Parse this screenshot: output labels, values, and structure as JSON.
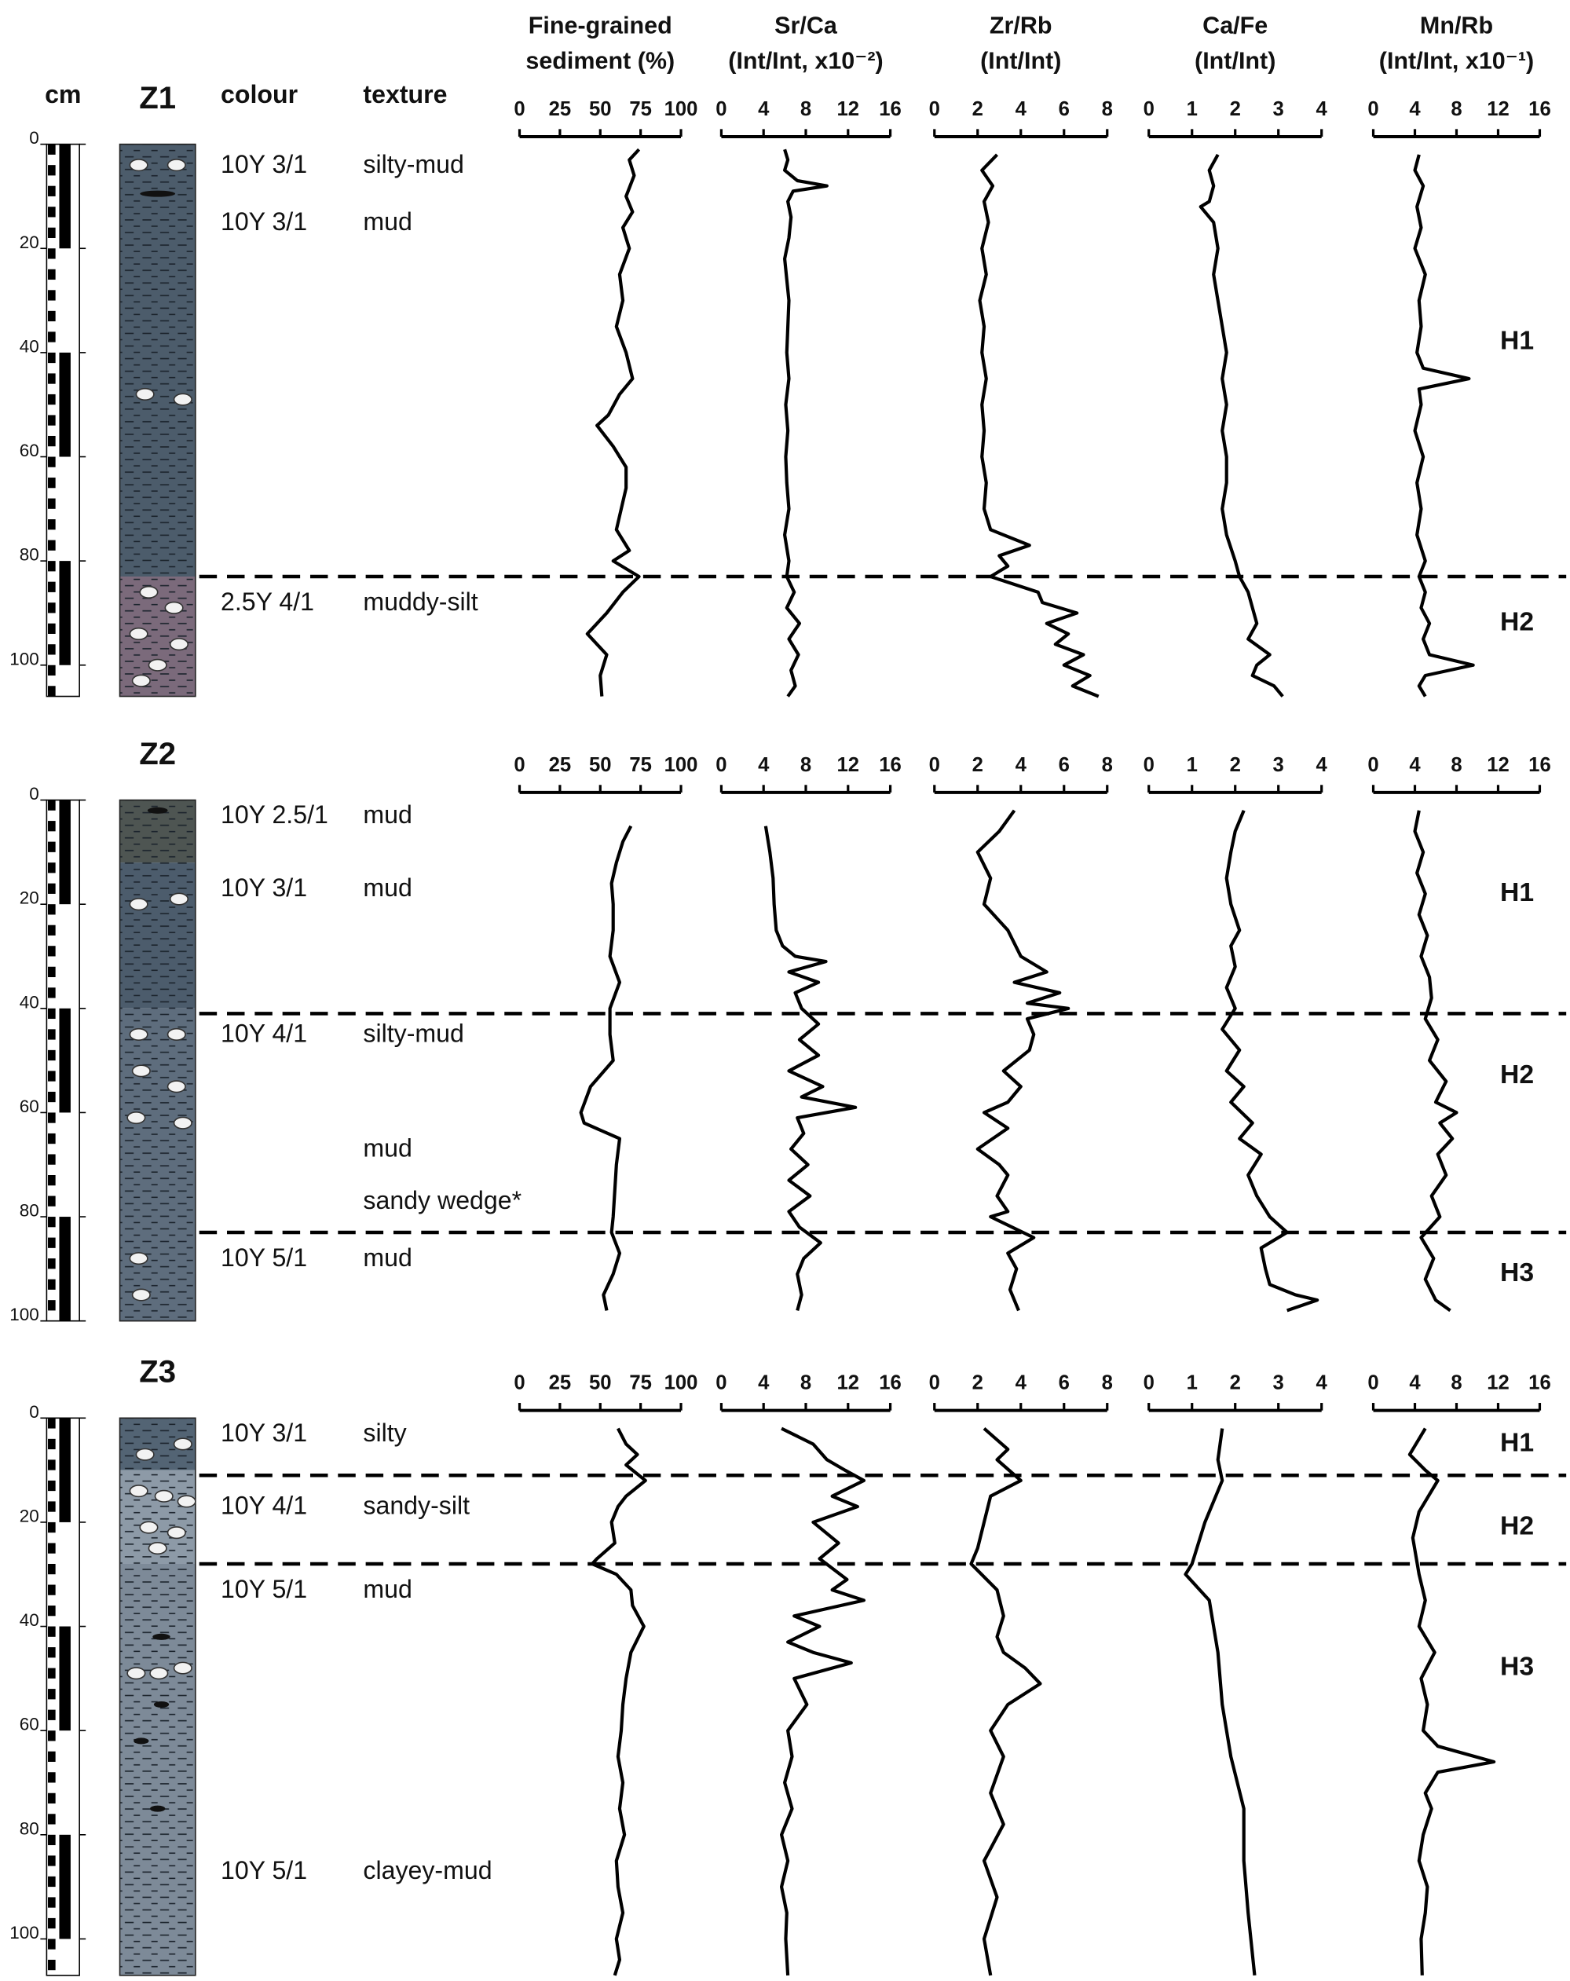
{
  "headers": {
    "depth_unit": "cm",
    "colour": "colour",
    "texture": "texture"
  },
  "cores": [
    {
      "name": "Z1",
      "ylim": [
        0,
        106
      ],
      "yticks": [
        0,
        20,
        40,
        60,
        80,
        100
      ],
      "units": [
        {
          "colour": "10Y 3/1",
          "texture": "silty-mud"
        },
        {
          "colour": "10Y 3/1",
          "texture": "mud"
        },
        {
          "colour": "2.5Y 4/1",
          "texture": "muddy-silt"
        }
      ],
      "boundaries": [
        83
      ],
      "zones": [
        "H1",
        "H2"
      ]
    },
    {
      "name": "Z2",
      "ylim": [
        0,
        100
      ],
      "yticks": [
        0,
        20,
        40,
        60,
        80,
        100
      ],
      "units": [
        {
          "colour": "10Y 2.5/1",
          "texture": "mud"
        },
        {
          "colour": "10Y 3/1",
          "texture": "mud"
        },
        {
          "colour": "10Y 4/1",
          "texture": "silty-mud"
        },
        {
          "texture": "mud"
        },
        {
          "texture": "sandy wedge*"
        },
        {
          "colour": "10Y 5/1",
          "texture": "mud"
        }
      ],
      "boundaries": [
        41,
        83
      ],
      "zones": [
        "H1",
        "H2",
        "H3"
      ]
    },
    {
      "name": "Z3",
      "ylim": [
        0,
        107
      ],
      "yticks": [
        0,
        20,
        40,
        60,
        80,
        100
      ],
      "units": [
        {
          "colour": "10Y 3/1",
          "texture": "silty"
        },
        {
          "colour": "10Y 4/1",
          "texture": "sandy-silt"
        },
        {
          "colour": "10Y 5/1",
          "texture": "mud"
        },
        {
          "colour": "10Y 5/1",
          "texture": "clayey-mud"
        }
      ],
      "boundaries": [
        11,
        28
      ],
      "zones": [
        "H1",
        "H2",
        "H3"
      ]
    }
  ],
  "chart_data": [
    {
      "type": "line",
      "title": [
        "Fine-grained",
        "sediment (%)"
      ],
      "xlim": [
        0,
        100
      ],
      "xticks": [
        0,
        25,
        50,
        75,
        100
      ],
      "series": [
        {
          "depth": [
            1,
            3,
            6,
            10,
            13,
            16,
            20,
            25,
            30,
            35,
            40,
            45,
            48,
            52,
            54,
            58,
            62,
            66,
            70,
            74,
            78,
            80,
            83,
            86,
            90,
            94,
            98,
            102,
            106
          ],
          "values": [
            74,
            68,
            71,
            66,
            70,
            64,
            68,
            62,
            64,
            60,
            66,
            70,
            62,
            55,
            48,
            58,
            66,
            66,
            63,
            60,
            68,
            58,
            74,
            64,
            54,
            42,
            54,
            50,
            51
          ]
        },
        {
          "depth": [
            5,
            8,
            12,
            16,
            20,
            25,
            30,
            35,
            40,
            45,
            50,
            55,
            60,
            62,
            65,
            70,
            75,
            80,
            83,
            87,
            91,
            95,
            98
          ],
          "values": [
            69,
            64,
            60,
            57,
            58,
            58,
            56,
            62,
            56,
            56,
            58,
            44,
            38,
            40,
            62,
            60,
            59,
            58,
            57,
            62,
            58,
            52,
            54
          ]
        },
        {
          "depth": [
            2,
            5,
            7,
            9,
            12,
            15,
            17,
            20,
            24,
            27,
            28,
            30,
            33,
            36,
            40,
            45,
            50,
            55,
            60,
            65,
            70,
            75,
            80,
            85,
            90,
            95,
            100,
            104,
            107
          ],
          "values": [
            61,
            66,
            73,
            66,
            78,
            66,
            61,
            57,
            59,
            48,
            45,
            60,
            69,
            70,
            77,
            69,
            66,
            64,
            63,
            61,
            64,
            62,
            65,
            60,
            61,
            64,
            60,
            62,
            59
          ]
        }
      ]
    },
    {
      "type": "line",
      "title": [
        "Sr/Ca",
        "(Int/Int, x10⁻²)"
      ],
      "xlim": [
        0,
        16
      ],
      "xticks": [
        0,
        4,
        8,
        12,
        16
      ],
      "series": [
        {
          "depth": [
            1,
            3,
            5,
            7,
            8,
            9,
            11,
            14,
            18,
            22,
            26,
            30,
            35,
            40,
            45,
            50,
            55,
            60,
            65,
            70,
            75,
            80,
            83,
            86,
            89,
            92,
            95,
            98,
            101,
            104,
            106
          ],
          "values": [
            6,
            6.3,
            6,
            7.2,
            10,
            6.8,
            6.3,
            6.6,
            6.4,
            6,
            6.2,
            6.4,
            6.3,
            6.2,
            6.4,
            6.1,
            6.3,
            6.1,
            6.2,
            6.4,
            6,
            6.4,
            6.2,
            6.9,
            6.2,
            7.4,
            6.4,
            7.3,
            6.6,
            7,
            6.3
          ]
        },
        {
          "depth": [
            5,
            10,
            15,
            20,
            25,
            28,
            30,
            31,
            33,
            35,
            37,
            40,
            43,
            46,
            49,
            52,
            55,
            57,
            59,
            61,
            64,
            67,
            70,
            73,
            76,
            79,
            82,
            85,
            88,
            91,
            95,
            98
          ],
          "values": [
            4.2,
            4.6,
            4.9,
            5,
            5.2,
            5.8,
            7,
            9.9,
            6.4,
            9.2,
            7,
            7.6,
            9.2,
            7.4,
            9.2,
            6.4,
            9.6,
            7.6,
            12.7,
            7.2,
            7.8,
            6.6,
            8.2,
            6.4,
            8.4,
            6.4,
            7.4,
            9.4,
            7.8,
            7.2,
            7.6,
            7.2
          ]
        },
        {
          "depth": [
            2,
            5,
            8,
            10,
            12,
            15,
            17,
            20,
            24,
            27,
            31,
            33,
            35,
            38,
            40,
            43,
            45,
            47,
            50,
            55,
            60,
            65,
            70,
            75,
            80,
            85,
            90,
            95,
            100,
            107
          ],
          "values": [
            5.7,
            8.7,
            10,
            11.7,
            13.5,
            10.5,
            12.9,
            8.7,
            11.1,
            9.3,
            11.9,
            10.5,
            13.5,
            6.9,
            9.3,
            6.3,
            8.7,
            12.3,
            6.9,
            8.1,
            6.3,
            6.7,
            6,
            6.7,
            5.7,
            6.3,
            5.7,
            6.2,
            6.1,
            6.3
          ]
        }
      ]
    },
    {
      "type": "line",
      "title": [
        "Zr/Rb",
        "(Int/Int)"
      ],
      "xlim": [
        0,
        8
      ],
      "xticks": [
        0,
        2,
        4,
        6,
        8
      ],
      "series": [
        {
          "depth": [
            2,
            5,
            8,
            11,
            15,
            20,
            25,
            30,
            35,
            40,
            45,
            50,
            55,
            60,
            65,
            70,
            74,
            77,
            79,
            81,
            83,
            86,
            88,
            90,
            92,
            94,
            96,
            98,
            100,
            102,
            104,
            106
          ],
          "values": [
            2.9,
            2.2,
            2.7,
            2.3,
            2.5,
            2.2,
            2.4,
            2.1,
            2.3,
            2.2,
            2.4,
            2.2,
            2.3,
            2.2,
            2.4,
            2.3,
            2.6,
            4.4,
            3,
            3.4,
            2.6,
            4.8,
            5,
            6.6,
            5.2,
            6.2,
            5.6,
            6.9,
            6,
            7.2,
            6.4,
            7.6
          ]
        },
        {
          "depth": [
            2,
            6,
            10,
            15,
            20,
            25,
            30,
            33,
            35,
            37,
            39,
            40,
            42,
            45,
            48,
            52,
            55,
            58,
            60,
            63,
            67,
            70,
            72,
            76,
            79,
            80,
            84,
            87,
            90,
            94,
            98
          ],
          "values": [
            3.7,
            3,
            2,
            2.6,
            2.3,
            3.4,
            4,
            5.2,
            3.7,
            5.8,
            4.3,
            6.2,
            4.3,
            4.6,
            4.4,
            3.2,
            4,
            3.4,
            2.3,
            3.4,
            2,
            3,
            3.4,
            2.9,
            3.4,
            2.6,
            4.6,
            3.4,
            3.8,
            3.5,
            3.9
          ]
        },
        {
          "depth": [
            2,
            6,
            8,
            12,
            15,
            20,
            25,
            28,
            33,
            38,
            42,
            45,
            48,
            51,
            55,
            60,
            65,
            72,
            78,
            85,
            92,
            100,
            107
          ],
          "values": [
            2.3,
            3.4,
            2.9,
            4,
            2.6,
            2.3,
            2,
            1.7,
            2.9,
            3.2,
            2.9,
            3.2,
            4.2,
            4.9,
            3.4,
            2.6,
            3.2,
            2.6,
            3.2,
            2.3,
            2.9,
            2.3,
            2.6
          ]
        }
      ]
    },
    {
      "type": "line",
      "title": [
        "Ca/Fe",
        "(Int/Int)"
      ],
      "xlim": [
        0,
        4
      ],
      "xticks": [
        0,
        1,
        2,
        3,
        4
      ],
      "series": [
        {
          "depth": [
            2,
            5,
            8,
            11,
            12,
            15,
            20,
            25,
            30,
            35,
            40,
            45,
            50,
            55,
            60,
            65,
            70,
            75,
            80,
            83,
            86,
            89,
            92,
            95,
            98,
            100,
            102,
            104,
            106
          ],
          "values": [
            1.6,
            1.4,
            1.5,
            1.4,
            1.2,
            1.5,
            1.6,
            1.5,
            1.6,
            1.7,
            1.8,
            1.7,
            1.8,
            1.7,
            1.8,
            1.8,
            1.7,
            1.8,
            2,
            2.1,
            2.3,
            2.4,
            2.5,
            2.3,
            2.8,
            2.5,
            2.4,
            2.9,
            3.1
          ]
        },
        {
          "depth": [
            2,
            6,
            10,
            15,
            20,
            25,
            28,
            32,
            36,
            40,
            44,
            48,
            52,
            55,
            58,
            62,
            65,
            68,
            72,
            76,
            80,
            83,
            86,
            90,
            93,
            95,
            96,
            98
          ],
          "values": [
            2.2,
            2,
            1.9,
            1.8,
            1.9,
            2.1,
            1.9,
            2,
            1.8,
            2,
            1.7,
            2.1,
            1.8,
            2.2,
            1.9,
            2.4,
            2.1,
            2.6,
            2.3,
            2.5,
            2.8,
            3.2,
            2.6,
            2.7,
            2.8,
            3.4,
            3.9,
            3.2
          ]
        },
        {
          "depth": [
            2,
            8,
            12,
            20,
            28,
            30,
            35,
            45,
            55,
            65,
            75,
            85,
            95,
            107
          ],
          "values": [
            1.7,
            1.6,
            1.7,
            1.3,
            1,
            0.85,
            1.4,
            1.6,
            1.7,
            1.9,
            2.2,
            2.2,
            2.3,
            2.45
          ]
        }
      ]
    },
    {
      "type": "line",
      "title": [
        "Mn/Rb",
        "(Int/Int, x10⁻¹)"
      ],
      "xlim": [
        0,
        16
      ],
      "xticks": [
        0,
        4,
        8,
        12,
        16
      ],
      "series": [
        {
          "depth": [
            2,
            5,
            8,
            12,
            16,
            20,
            25,
            30,
            35,
            40,
            43,
            45,
            47,
            50,
            55,
            60,
            65,
            70,
            75,
            80,
            83,
            86,
            89,
            92,
            95,
            98,
            100,
            102,
            104,
            106
          ],
          "values": [
            4.4,
            4,
            4.8,
            4.2,
            4.6,
            4,
            5,
            4.4,
            4.6,
            4.2,
            4.8,
            9.2,
            4.4,
            4.6,
            4,
            4.8,
            4.2,
            4.6,
            4.2,
            5,
            4.4,
            5,
            4.6,
            5.4,
            4.8,
            5.4,
            9.6,
            5,
            4.4,
            5
          ]
        },
        {
          "depth": [
            2,
            6,
            10,
            14,
            18,
            22,
            26,
            30,
            34,
            38,
            42,
            46,
            50,
            54,
            58,
            60,
            62,
            65,
            68,
            72,
            76,
            80,
            84,
            88,
            92,
            96,
            98
          ],
          "values": [
            4.4,
            4,
            4.8,
            4.2,
            5,
            4.4,
            5.2,
            4.6,
            5.4,
            5.6,
            5,
            6.2,
            5.4,
            7,
            6,
            8,
            6.4,
            7.6,
            6.2,
            7,
            5.6,
            6.4,
            4.6,
            5.8,
            5,
            6,
            7.4
          ]
        },
        {
          "depth": [
            2,
            7,
            10,
            12,
            18,
            23,
            30,
            35,
            40,
            45,
            50,
            55,
            60,
            63,
            66,
            68,
            72,
            75,
            80,
            85,
            90,
            95,
            100,
            107
          ],
          "values": [
            5,
            3.5,
            5,
            6.2,
            4.4,
            3.8,
            4.4,
            5,
            4.4,
            5.9,
            4.6,
            5.2,
            4.8,
            6.2,
            11.6,
            6.2,
            5,
            5.6,
            4.8,
            4.4,
            5.2,
            5,
            4.6,
            4.7
          ]
        }
      ]
    }
  ]
}
